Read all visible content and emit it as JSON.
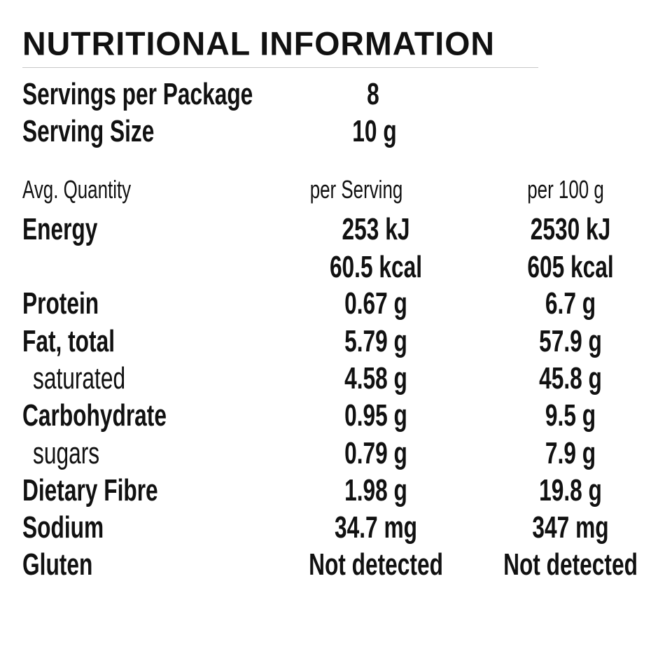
{
  "header": {
    "title": "NUTRITIONAL INFORMATION"
  },
  "servings": [
    {
      "label": "Servings per Package",
      "value": "8"
    },
    {
      "label": "Serving Size",
      "value": "10 g"
    }
  ],
  "table": {
    "columns": [
      "Avg. Quantity",
      "per Serving",
      "per 100 g"
    ],
    "rows": [
      {
        "label": "Energy",
        "per_serving": "253 kJ",
        "per_100g": "2530 kJ"
      },
      {
        "per_serving": "60.5 kcal",
        "per_100g": "605 kcal"
      },
      {
        "label": "Protein",
        "per_serving": "0.67 g",
        "per_100g": "6.7 g"
      },
      {
        "label": "Fat, total",
        "per_serving": "5.79 g",
        "per_100g": "57.9 g"
      },
      {
        "label": "saturated",
        "per_serving": "4.58 g",
        "per_100g": "45.8 g"
      },
      {
        "label": "Carbohydrate",
        "per_serving": "0.95 g",
        "per_100g": "9.5 g"
      },
      {
        "label": "sugars",
        "per_serving": "0.79 g",
        "per_100g": "7.9 g"
      },
      {
        "label": "Dietary Fibre",
        "per_serving": "1.98 g",
        "per_100g": "19.8 g"
      },
      {
        "label": "Sodium",
        "per_serving": "34.7 mg",
        "per_100g": "347 mg"
      },
      {
        "label": "Gluten",
        "per_serving": "Not detected",
        "per_100g": "Not detected"
      }
    ]
  }
}
